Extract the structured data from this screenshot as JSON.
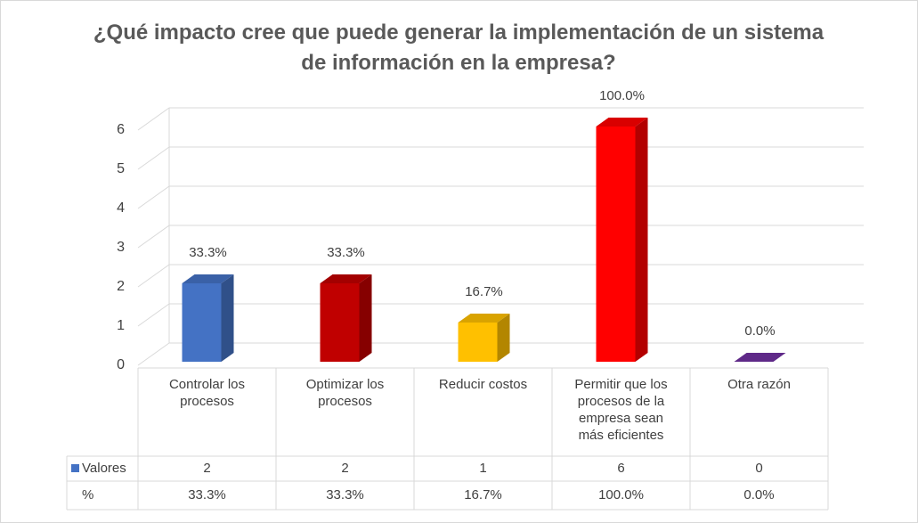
{
  "chart_data": {
    "type": "bar3d",
    "title": "¿Qué impacto cree que puede generar la implementación de un sistema de información en la empresa?",
    "categories": [
      "Controlar los procesos",
      "Optimizar los procesos",
      "Reducir costos",
      "Permitir que los procesos de la empresa sean más eficientes",
      "Otra razón"
    ],
    "series": [
      {
        "name": "Valores",
        "color": "#4472c4",
        "colors": [
          "#4472c4",
          "#c00000",
          "#ffc000",
          "#ff0000",
          "#7030a0"
        ],
        "values": [
          2,
          2,
          1,
          6,
          0
        ]
      },
      {
        "name": "%",
        "values": [
          33.3,
          33.3,
          16.7,
          100,
          0
        ],
        "value_labels": [
          "33.3%",
          "33.3%",
          "16.7%",
          "100.0%",
          "0.0%"
        ]
      }
    ],
    "ylim": [
      0,
      6
    ],
    "yticks": [
      0,
      1,
      2,
      3,
      4,
      5,
      6
    ],
    "grid": true
  }
}
